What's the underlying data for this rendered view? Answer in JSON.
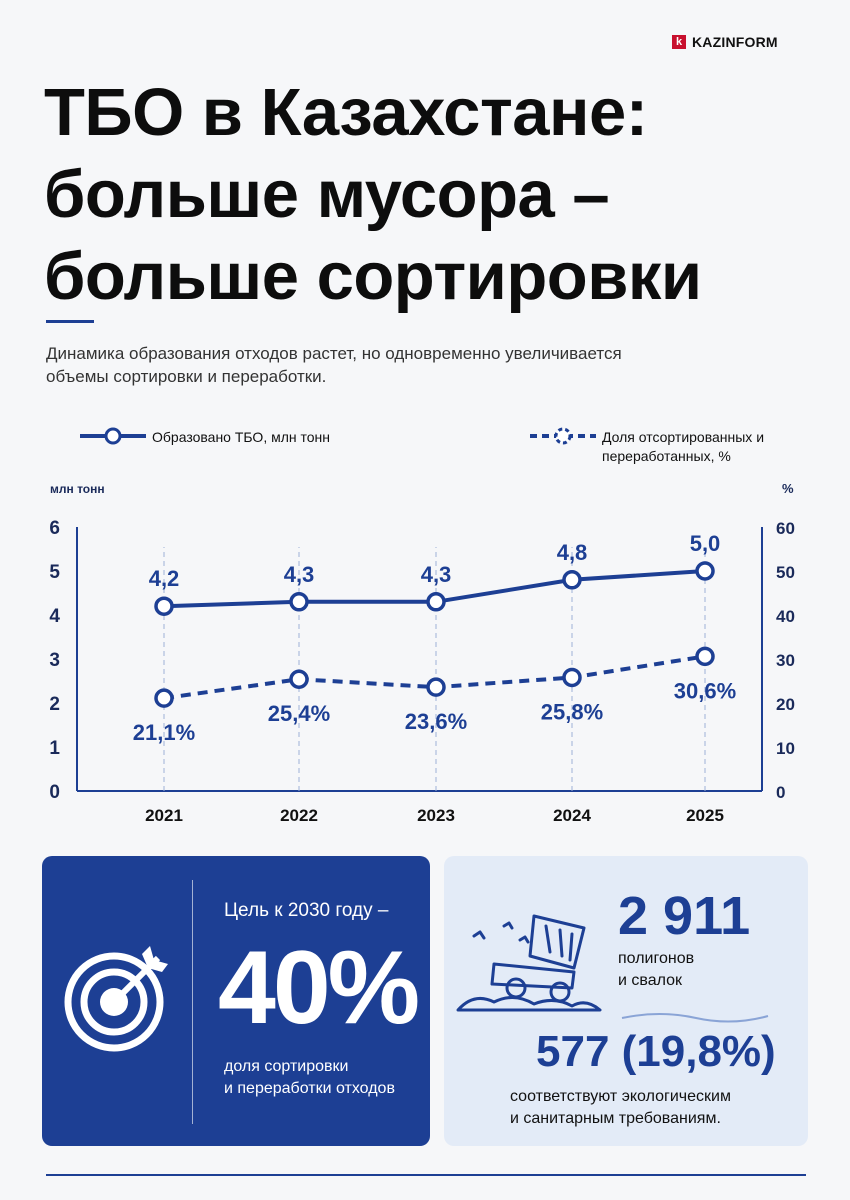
{
  "brand": {
    "logo_letter": "k",
    "name": "KAZINFORM"
  },
  "title": "ТБО в Казахстане:\nбольше мусора –\nбольше сортировки",
  "subtitle": "Динамика образования отходов растет, но одновременно увеличивается объемы сортировки и переработки.",
  "colors": {
    "primary": "#1d3f94",
    "light_panel": "#e3ebf7",
    "brand_red": "#c8102e"
  },
  "chart_data": {
    "type": "line",
    "categories": [
      "2021",
      "2022",
      "2023",
      "2024",
      "2025"
    ],
    "y_left": {
      "label": "млн тонн",
      "ticks": [
        "0",
        "1",
        "2",
        "3",
        "4",
        "5",
        "6"
      ],
      "range": [
        0,
        6
      ]
    },
    "y_right": {
      "label": "%",
      "ticks": [
        "0",
        "10",
        "20",
        "30",
        "40",
        "50",
        "60"
      ],
      "range": [
        0,
        60
      ]
    },
    "series": [
      {
        "name": "Образовано ТБО, млн тонн",
        "axis": "left",
        "style": "solid",
        "values": [
          4.2,
          4.3,
          4.3,
          4.8,
          5.0
        ],
        "labels": [
          "4,2",
          "4,3",
          "4,3",
          "4,8",
          "5,0"
        ]
      },
      {
        "name": "Доля отсортированных и переработанных, %",
        "axis": "right",
        "style": "dashed",
        "values": [
          21.1,
          25.4,
          23.6,
          25.8,
          30.6
        ],
        "labels": [
          "21,1%",
          "25,4%",
          "23,6%",
          "25,8%",
          "30,6%"
        ]
      }
    ],
    "legend": "top"
  },
  "goal": {
    "label": "Цель к 2030 году –",
    "value": "40%",
    "caption": "доля сортировки\nи переработки отходов",
    "icon": "target-icon"
  },
  "landfills": {
    "count": "2 911",
    "count_caption": "полигонов\nи свалок",
    "compliant": "577 (19,8%)",
    "compliant_caption": "соответствуют экологическим\nи санитарным требованиям.",
    "icon": "dump-truck-icon"
  }
}
